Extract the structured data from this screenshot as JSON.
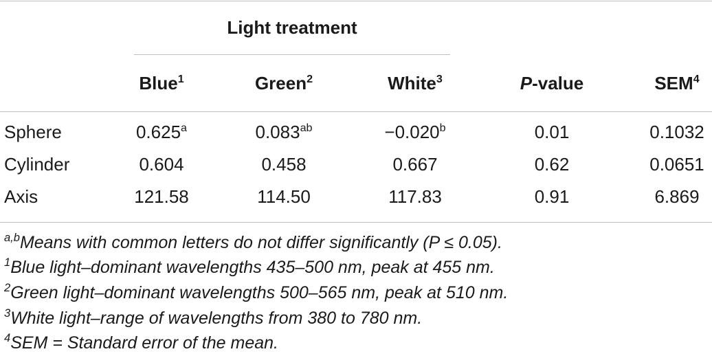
{
  "table": {
    "group_header": "Light treatment",
    "columns": [
      {
        "label": "Blue",
        "sup": "1",
        "italic_prefix": ""
      },
      {
        "label": "Green",
        "sup": "2",
        "italic_prefix": ""
      },
      {
        "label": "White",
        "sup": "3",
        "italic_prefix": ""
      },
      {
        "label": "-value",
        "sup": "",
        "italic_prefix": "P"
      },
      {
        "label": "SEM",
        "sup": "4",
        "italic_prefix": ""
      }
    ],
    "rows": [
      {
        "label": "Sphere",
        "cells": [
          {
            "v": "0.625",
            "sup": "a"
          },
          {
            "v": "0.083",
            "sup": "ab"
          },
          {
            "v": "−0.020",
            "sup": "b"
          },
          {
            "v": "0.01",
            "sup": ""
          },
          {
            "v": "0.1032",
            "sup": ""
          }
        ]
      },
      {
        "label": "Cylinder",
        "cells": [
          {
            "v": "0.604",
            "sup": ""
          },
          {
            "v": "0.458",
            "sup": ""
          },
          {
            "v": "0.667",
            "sup": ""
          },
          {
            "v": "0.62",
            "sup": ""
          },
          {
            "v": "0.0651",
            "sup": ""
          }
        ]
      },
      {
        "label": "Axis",
        "cells": [
          {
            "v": "121.58",
            "sup": ""
          },
          {
            "v": "114.50",
            "sup": ""
          },
          {
            "v": "117.83",
            "sup": ""
          },
          {
            "v": "0.91",
            "sup": ""
          },
          {
            "v": "6.869",
            "sup": ""
          }
        ]
      }
    ]
  },
  "footnotes": [
    {
      "sup": "a,b",
      "text": "Means with common letters do not differ significantly (P ≤ 0.05)."
    },
    {
      "sup": "1",
      "text": "Blue light–dominant wavelengths 435–500 nm, peak at 455 nm."
    },
    {
      "sup": "2",
      "text": "Green light–dominant wavelengths 500–565 nm, peak at 510 nm."
    },
    {
      "sup": "3",
      "text": "White light–range of wavelengths from 380 to 780 nm."
    },
    {
      "sup": "4",
      "text": "SEM = Standard error of the mean."
    }
  ]
}
